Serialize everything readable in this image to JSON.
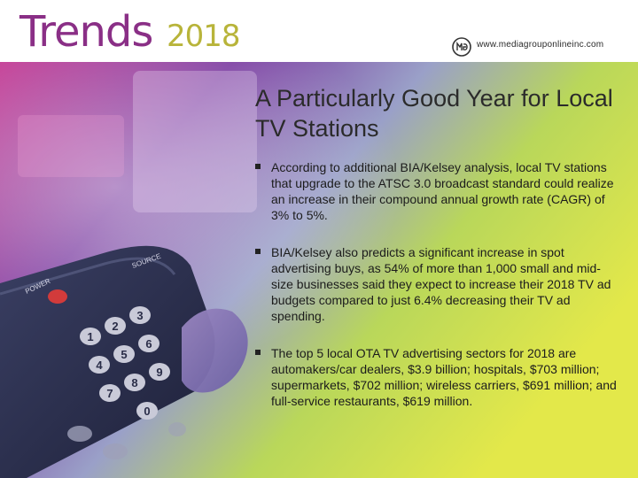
{
  "header": {
    "brand_word": "Trends",
    "brand_year": "2018",
    "website": "www.mediagrouponlineinc.com",
    "logo_icon": "mgo-logo-icon"
  },
  "slide": {
    "title": "A Particularly Good Year for Local TV Stations",
    "bullets": [
      {
        "text": "According to additional BIA/Kelsey analysis, local TV stations that upgrade to the ATSC 3.0 broadcast standard could realize an increase in their compound annual growth rate (CAGR) of 3% to 5%."
      },
      {
        "text": "BIA/Kelsey also predicts a significant increase in spot advertising buys, as 54% of more than 1,000 small and mid-size businesses said they expect to increase their 2018 TV ad budgets compared to just 6.4% decreasing their TV ad spending."
      },
      {
        "text": "The top 5 local OTA TV advertising sectors for 2018 are automakers/car dealers, $3.9 billion; hospitals, $703 million; supermarkets, $702 million; wireless carriers, $691 million; and full-service restaurants, $619 million."
      }
    ]
  },
  "remote": {
    "labels": [
      "POWER",
      "SOURCE"
    ],
    "keys": [
      "1",
      "2",
      "3",
      "4",
      "5",
      "6",
      "7",
      "8",
      "9",
      "0"
    ]
  },
  "colors": {
    "brand_purple": "#8a2f86",
    "brand_olive": "#b8b43a",
    "gradient_magenta": "#c1328f",
    "gradient_purple": "#6b3fa6",
    "gradient_green": "#a6d44a",
    "gradient_yellow": "#e3e84a"
  }
}
